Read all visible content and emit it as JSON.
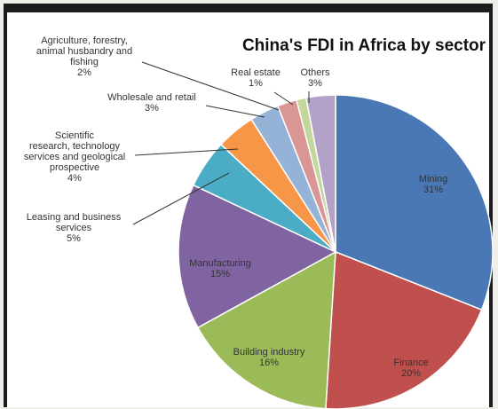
{
  "chart_data": {
    "type": "pie",
    "title": "China's FDI in Africa by sector",
    "series": [
      {
        "name": "Mining",
        "value": 31,
        "label": "31%",
        "color": "#4a78b5"
      },
      {
        "name": "Finance",
        "value": 20,
        "label": "20%",
        "color": "#c0504d"
      },
      {
        "name": "Building industry",
        "value": 16,
        "label": "16%",
        "color": "#9bbb59"
      },
      {
        "name": "Manufacturing",
        "value": 15,
        "label": "15%",
        "color": "#8064a2"
      },
      {
        "name": "Leasing and business services",
        "value": 5,
        "label": "5%",
        "color": "#4bacc6"
      },
      {
        "name": "Scientific research, technology services and geological prospective",
        "value": 4,
        "label": "4%",
        "color": "#f79646"
      },
      {
        "name": "Wholesale and retail",
        "value": 3,
        "label": "3%",
        "color": "#95b3d7"
      },
      {
        "name": "Agriculture, forestry, animal husbandry and fishing",
        "value": 2,
        "label": "2%",
        "color": "#d99694"
      },
      {
        "name": "Real estate",
        "value": 1,
        "label": "1%",
        "color": "#c3d69b"
      },
      {
        "name": "Others",
        "value": 3,
        "label": "3%",
        "color": "#b3a2c7"
      }
    ]
  }
}
